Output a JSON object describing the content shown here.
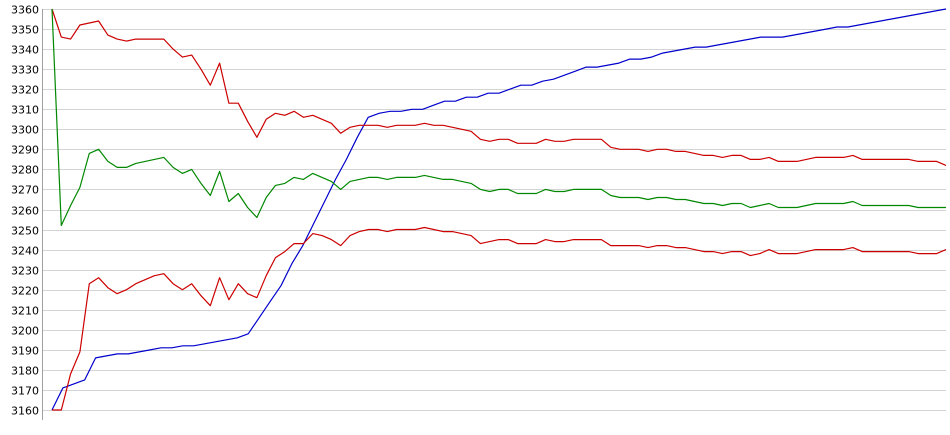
{
  "chart_data": {
    "type": "line",
    "title": "",
    "xlabel": "",
    "ylabel": "",
    "ylim": [
      3160,
      3360
    ],
    "yticks": [
      3160,
      3170,
      3180,
      3190,
      3200,
      3210,
      3220,
      3230,
      3240,
      3250,
      3260,
      3270,
      3280,
      3290,
      3300,
      3310,
      3320,
      3330,
      3340,
      3350,
      3360
    ],
    "grid": true,
    "legend": "none",
    "x_count": 99,
    "series": [
      {
        "color": "#0000cc",
        "values": [
          3160,
          3171,
          3173,
          3175,
          3186,
          3187,
          3188,
          3188,
          3189,
          3190,
          3191,
          3191,
          3192,
          3192,
          3193,
          3194,
          3195,
          3196,
          3198,
          3206,
          3214,
          3222,
          3233,
          3242,
          3253,
          3264,
          3275,
          3285,
          3296,
          3306,
          3308,
          3309,
          3309,
          3310,
          3310,
          3312,
          3314,
          3314,
          3316,
          3316,
          3318,
          3318,
          3320,
          3322,
          3322,
          3324,
          3325,
          3327,
          3329,
          3331,
          3331,
          3332,
          3333,
          3335,
          3335,
          3336,
          3338,
          3339,
          3340,
          3341,
          3341,
          3342,
          3343,
          3344,
          3345,
          3346,
          3346,
          3346,
          3347,
          3348,
          3349,
          3350,
          3351,
          3351,
          3352,
          3353,
          3354,
          3355,
          3356,
          3357,
          3358,
          3359,
          3360
        ]
      },
      {
        "color": "#cc0000",
        "values": [
          3360,
          3346,
          3345,
          3352,
          3353,
          3354,
          3347,
          3345,
          3344,
          3345,
          3345,
          3345,
          3345,
          3340,
          3336,
          3337,
          3330,
          3322,
          3333,
          3313,
          3313,
          3304,
          3296,
          3305,
          3308,
          3307,
          3309,
          3306,
          3307,
          3305,
          3303,
          3298,
          3301,
          3302,
          3302,
          3302,
          3301,
          3302,
          3302,
          3302,
          3303,
          3302,
          3302,
          3301,
          3300,
          3299,
          3295,
          3294,
          3295,
          3295,
          3293,
          3293,
          3293,
          3295,
          3294,
          3294,
          3295,
          3295,
          3295,
          3295,
          3291,
          3290,
          3290,
          3290,
          3289,
          3290,
          3290,
          3289,
          3289,
          3288,
          3287,
          3287,
          3286,
          3287,
          3287,
          3285,
          3285,
          3286,
          3284,
          3284,
          3284,
          3285,
          3286,
          3286,
          3286,
          3286,
          3287,
          3285,
          3285,
          3285,
          3285,
          3285,
          3285,
          3284,
          3284,
          3284,
          3282
        ]
      },
      {
        "color": "#008800",
        "values": [
          3360,
          3252,
          3262,
          3271,
          3288,
          3290,
          3284,
          3281,
          3281,
          3283,
          3284,
          3285,
          3286,
          3281,
          3278,
          3280,
          3273,
          3267,
          3279,
          3264,
          3268,
          3261,
          3256,
          3266,
          3272,
          3273,
          3276,
          3275,
          3278,
          3276,
          3274,
          3270,
          3274,
          3275,
          3276,
          3276,
          3275,
          3276,
          3276,
          3276,
          3277,
          3276,
          3275,
          3275,
          3274,
          3273,
          3270,
          3269,
          3270,
          3270,
          3268,
          3268,
          3268,
          3270,
          3269,
          3269,
          3270,
          3270,
          3270,
          3270,
          3267,
          3266,
          3266,
          3266,
          3265,
          3266,
          3266,
          3265,
          3265,
          3264,
          3263,
          3263,
          3262,
          3263,
          3263,
          3261,
          3262,
          3263,
          3261,
          3261,
          3261,
          3262,
          3263,
          3263,
          3263,
          3263,
          3264,
          3262,
          3262,
          3262,
          3262,
          3262,
          3262,
          3261,
          3261,
          3261,
          3261
        ]
      },
      {
        "color": "#cc0000",
        "values": [
          3160,
          3160,
          3178,
          3189,
          3223,
          3226,
          3221,
          3218,
          3220,
          3223,
          3225,
          3227,
          3228,
          3223,
          3220,
          3223,
          3217,
          3212,
          3226,
          3215,
          3223,
          3218,
          3216,
          3227,
          3236,
          3239,
          3243,
          3243,
          3248,
          3247,
          3245,
          3242,
          3247,
          3249,
          3250,
          3250,
          3249,
          3250,
          3250,
          3250,
          3251,
          3250,
          3249,
          3249,
          3248,
          3247,
          3243,
          3244,
          3245,
          3245,
          3243,
          3243,
          3243,
          3245,
          3244,
          3244,
          3245,
          3245,
          3245,
          3245,
          3242,
          3242,
          3242,
          3242,
          3241,
          3242,
          3242,
          3241,
          3241,
          3240,
          3239,
          3239,
          3238,
          3239,
          3239,
          3237,
          3238,
          3240,
          3238,
          3238,
          3238,
          3239,
          3240,
          3240,
          3240,
          3240,
          3241,
          3239,
          3239,
          3239,
          3239,
          3239,
          3239,
          3238,
          3238,
          3238,
          3240
        ]
      }
    ]
  }
}
